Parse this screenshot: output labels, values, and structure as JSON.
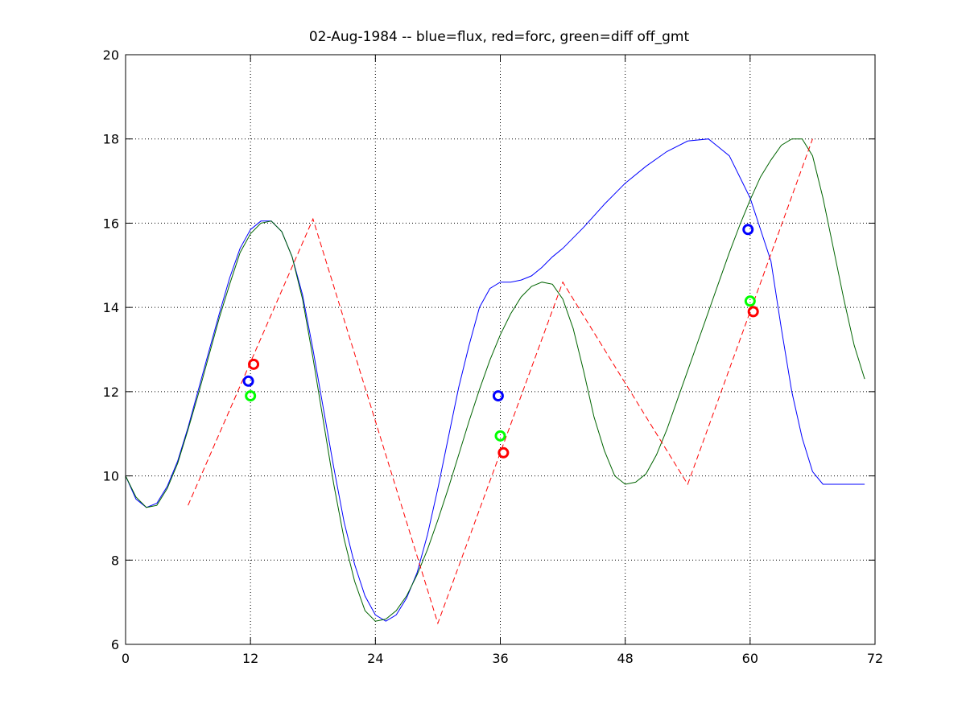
{
  "chart_data": {
    "type": "line",
    "title": "02-Aug-1984 -- blue=flux, red=forc, green=diff off_gmt",
    "xlabel": "",
    "ylabel": "",
    "xlim": [
      0,
      72
    ],
    "ylim": [
      6,
      20
    ],
    "xticks": [
      0,
      12,
      24,
      36,
      48,
      60,
      72
    ],
    "yticks": [
      6,
      8,
      10,
      12,
      14,
      16,
      18,
      20
    ],
    "grid": true,
    "colors": {
      "blue": "#0000ff",
      "red": "#ff0000",
      "green": "#006400",
      "marker_green": "#00ff00"
    },
    "series": [
      {
        "color": "#0000ff",
        "style": "solid",
        "x": [
          0,
          1,
          2,
          3,
          4,
          5,
          6,
          7,
          8,
          9,
          10,
          11,
          12,
          13,
          14,
          15,
          16,
          17,
          18,
          19,
          20,
          21,
          22,
          23,
          24,
          25,
          26,
          27,
          28,
          29,
          30,
          31,
          32,
          33,
          34,
          35,
          36,
          37,
          38,
          39,
          40,
          41,
          42,
          44,
          46,
          48,
          50,
          52,
          54,
          56,
          58,
          60,
          62,
          63,
          64,
          65,
          66,
          67,
          68,
          69,
          70,
          71
        ],
        "y": [
          10.0,
          9.45,
          9.25,
          9.35,
          9.75,
          10.35,
          11.15,
          12.05,
          12.95,
          13.85,
          14.7,
          15.4,
          15.85,
          16.05,
          16.05,
          15.8,
          15.2,
          14.3,
          13.0,
          11.6,
          10.2,
          8.9,
          7.9,
          7.15,
          6.7,
          6.55,
          6.7,
          7.1,
          7.7,
          8.6,
          9.7,
          10.9,
          12.1,
          13.1,
          14.0,
          14.45,
          14.6,
          14.6,
          14.65,
          14.75,
          14.95,
          15.2,
          15.4,
          15.9,
          16.45,
          16.95,
          17.35,
          17.7,
          17.95,
          18.0,
          17.6,
          16.6,
          15.1,
          13.5,
          12.0,
          10.9,
          10.1,
          9.8,
          9.8,
          9.8,
          9.8,
          9.8
        ]
      },
      {
        "color": "#006400",
        "style": "solid",
        "x": [
          0,
          1,
          2,
          3,
          4,
          5,
          6,
          7,
          8,
          9,
          10,
          11,
          12,
          13,
          14,
          15,
          16,
          17,
          18,
          19,
          20,
          21,
          22,
          23,
          24,
          25,
          26,
          27,
          28,
          29,
          30,
          31,
          32,
          33,
          34,
          35,
          36,
          37,
          38,
          39,
          40,
          41,
          42,
          43,
          44,
          45,
          46,
          47,
          48,
          49,
          50,
          51,
          52,
          53,
          54,
          55,
          56,
          57,
          58,
          59,
          60,
          61,
          62,
          63,
          64,
          65,
          66,
          67,
          68,
          69,
          70,
          71
        ],
        "y": [
          10.0,
          9.5,
          9.25,
          9.3,
          9.7,
          10.3,
          11.1,
          11.95,
          12.85,
          13.75,
          14.55,
          15.3,
          15.75,
          16.0,
          16.05,
          15.8,
          15.2,
          14.2,
          12.8,
          11.3,
          9.8,
          8.5,
          7.5,
          6.8,
          6.55,
          6.6,
          6.8,
          7.15,
          7.65,
          8.25,
          8.95,
          9.7,
          10.5,
          11.3,
          12.05,
          12.75,
          13.35,
          13.85,
          14.25,
          14.5,
          14.6,
          14.55,
          14.2,
          13.5,
          12.5,
          11.4,
          10.6,
          10.0,
          9.8,
          9.85,
          10.05,
          10.5,
          11.1,
          11.8,
          12.5,
          13.2,
          13.9,
          14.6,
          15.3,
          15.95,
          16.55,
          17.1,
          17.5,
          17.85,
          18.0,
          18.0,
          17.6,
          16.6,
          15.4,
          14.2,
          13.1,
          12.3
        ]
      },
      {
        "color": "#ff0000",
        "style": "dashed",
        "x": [
          6,
          18,
          30,
          42,
          54,
          66
        ],
        "y": [
          9.3,
          16.1,
          6.5,
          14.6,
          9.8,
          18.0
        ]
      }
    ],
    "markers": [
      {
        "color": "#0000ff",
        "x": 11.8,
        "y": 12.25
      },
      {
        "color": "#00ff00",
        "x": 12.0,
        "y": 11.9
      },
      {
        "color": "#ff0000",
        "x": 12.3,
        "y": 12.65
      },
      {
        "color": "#0000ff",
        "x": 35.8,
        "y": 11.9
      },
      {
        "color": "#00ff00",
        "x": 36.0,
        "y": 10.95
      },
      {
        "color": "#ff0000",
        "x": 36.3,
        "y": 10.55
      },
      {
        "color": "#0000ff",
        "x": 59.8,
        "y": 15.85
      },
      {
        "color": "#00ff00",
        "x": 60.0,
        "y": 14.15
      },
      {
        "color": "#ff0000",
        "x": 60.3,
        "y": 13.9
      }
    ]
  }
}
